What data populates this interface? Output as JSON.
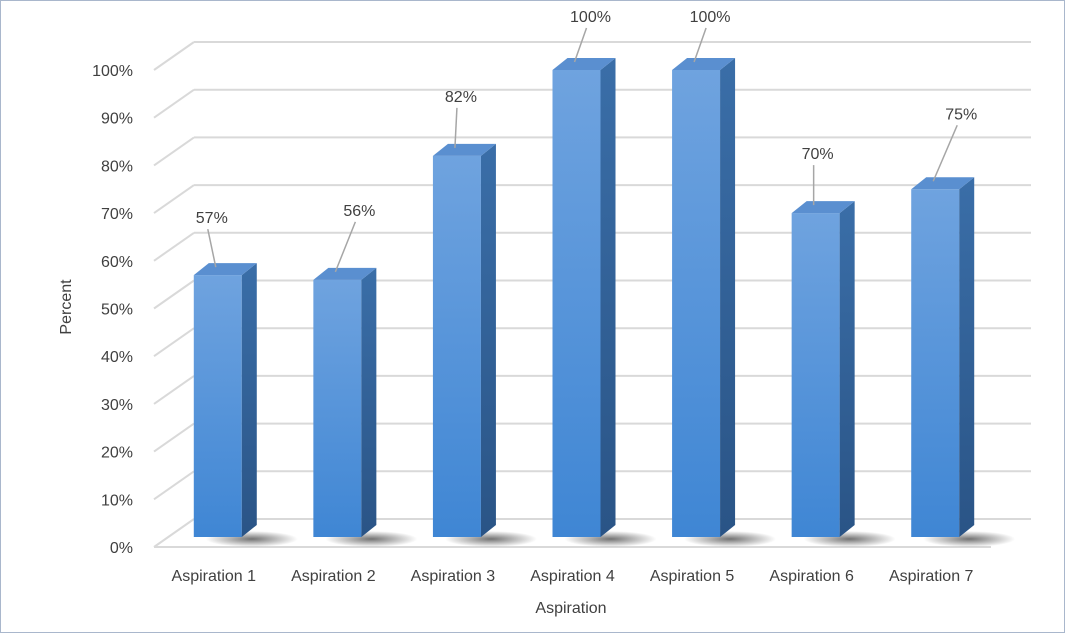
{
  "chart_data": {
    "type": "bar",
    "title": "",
    "xlabel": "Aspiration",
    "ylabel": "Percent",
    "categories": [
      "Aspiration 1",
      "Aspiration 2",
      "Aspiration 3",
      "Aspiration 4",
      "Aspiration 5",
      "Aspiration 6",
      "Aspiration 7"
    ],
    "values": [
      57,
      56,
      82,
      100,
      100,
      70,
      75
    ],
    "data_labels": [
      "57%",
      "56%",
      "82%",
      "100%",
      "100%",
      "70%",
      "75%"
    ],
    "y_ticks": [
      "0%",
      "10%",
      "20%",
      "30%",
      "40%",
      "50%",
      "60%",
      "70%",
      "80%",
      "90%",
      "100%"
    ],
    "ylim": [
      0,
      100
    ],
    "grid": true,
    "style": "3d-column",
    "colors": {
      "bar_front_top": "#6fa3df",
      "bar_front_bottom": "#3f86d4",
      "bar_side": "#2f5f93",
      "bar_top": "#5a8fd0",
      "grid": "#d9d9d9",
      "text": "#404040",
      "frame": "#a9b7cc"
    }
  }
}
